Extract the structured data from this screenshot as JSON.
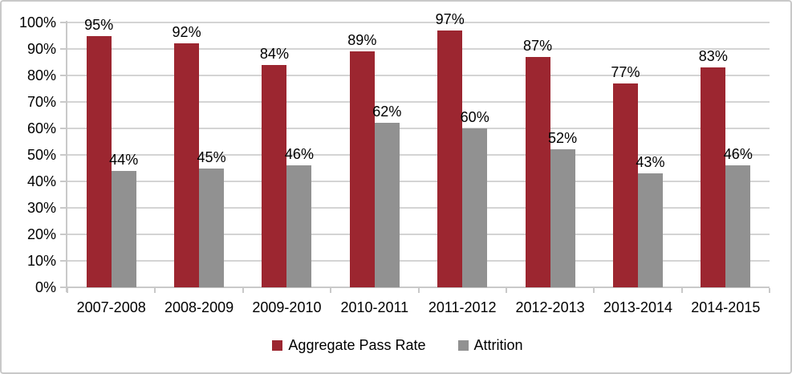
{
  "chart_data": {
    "type": "bar",
    "title": "",
    "categories": [
      "2007-2008",
      "2008-2009",
      "2009-2010",
      "2010-2011",
      "2011-2012",
      "2012-2013",
      "2013-2014",
      "2014-2015"
    ],
    "series": [
      {
        "name": "Aggregate Pass Rate",
        "color": "#9c2630",
        "values": [
          95,
          92,
          84,
          89,
          97,
          87,
          77,
          83
        ],
        "labels": [
          "95%",
          "92%",
          "84%",
          "89%",
          "97%",
          "87%",
          "77%",
          "83%"
        ]
      },
      {
        "name": "Attrition",
        "color": "#919191",
        "values": [
          44,
          45,
          46,
          62,
          60,
          52,
          43,
          46
        ],
        "labels": [
          "44%",
          "45%",
          "46%",
          "62%",
          "60%",
          "52%",
          "43%",
          "46%"
        ]
      }
    ],
    "y_axis": {
      "min": 0,
      "max": 100,
      "step": 10,
      "tick_labels": [
        "0%",
        "10%",
        "20%",
        "30%",
        "40%",
        "50%",
        "60%",
        "70%",
        "80%",
        "90%",
        "100%"
      ]
    },
    "xlabel": "",
    "ylabel": "",
    "grid": true,
    "legend_position": "bottom",
    "colors": {
      "gridline": "#d4d4d4",
      "axis": "#c9c9c9",
      "text": "#000000",
      "background": "#ffffff"
    }
  }
}
